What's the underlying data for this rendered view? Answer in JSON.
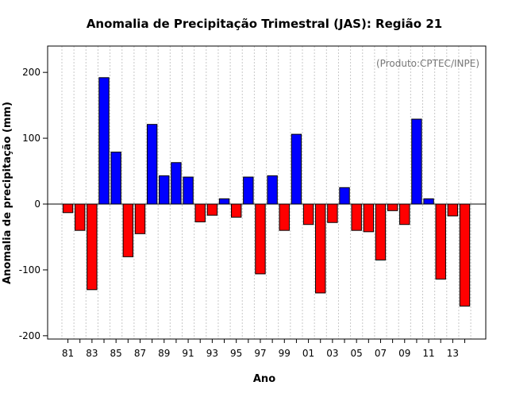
{
  "chart_data": {
    "type": "bar",
    "title": "Anomalia de Precipitação Trimestral (JAS): Região 21",
    "xlabel": "Ano",
    "ylabel": "Anomalia de precipitação (mm)",
    "source_note": "(Produto:CPTEC/INPE)",
    "ylim": [
      -205,
      240
    ],
    "yticks": [
      -200,
      -100,
      0,
      100,
      200
    ],
    "grid": true,
    "positive_color": "#0000ff",
    "negative_color": "#ff0000",
    "categories": [
      "81",
      "82",
      "83",
      "84",
      "85",
      "86",
      "87",
      "88",
      "89",
      "90",
      "91",
      "92",
      "93",
      "94",
      "95",
      "96",
      "97",
      "98",
      "99",
      "00",
      "01",
      "02",
      "03",
      "04",
      "05",
      "06",
      "07",
      "08",
      "09",
      "10",
      "11",
      "12",
      "13",
      "14"
    ],
    "xtick_labels": [
      "81",
      "83",
      "85",
      "87",
      "89",
      "91",
      "93",
      "95",
      "97",
      "99",
      "01",
      "03",
      "05",
      "07",
      "09",
      "11",
      "13"
    ],
    "values": [
      -13,
      -40,
      -130,
      192,
      79,
      -80,
      -45,
      121,
      43,
      63,
      41,
      -27,
      -17,
      8,
      -20,
      41,
      -106,
      43,
      -40,
      106,
      -31,
      -135,
      -28,
      25,
      -40,
      -42,
      -85,
      -10,
      -31,
      129,
      8,
      -114,
      -18,
      -155
    ]
  }
}
